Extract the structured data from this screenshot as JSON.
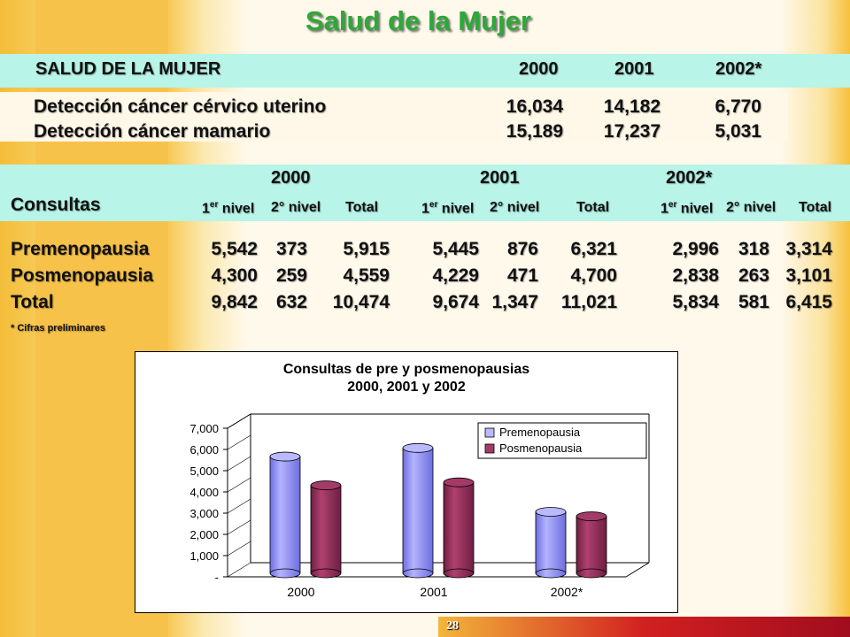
{
  "title": "Salud de la Mujer",
  "top_table": {
    "header": "SALUD DE LA MUJER",
    "years": [
      "2000",
      "2001",
      "2002*"
    ],
    "rows": [
      {
        "label": "Detección cáncer cérvico uterino",
        "values": [
          "16,034",
          "14,182",
          "6,770"
        ]
      },
      {
        "label": "Detección cáncer mamario",
        "values": [
          "15,189",
          "17,237",
          "5,031"
        ]
      }
    ]
  },
  "consult_table": {
    "label": "Consultas",
    "years": [
      "2000",
      "2001",
      "2002*"
    ],
    "sub_first_base": "1",
    "sub_first_sup": "er",
    "sub_first_tail": " nivel",
    "sub_second": "2° nivel",
    "sub_total": "Total",
    "rows": [
      {
        "label": "Premenopausia",
        "values": [
          "5,542",
          "373",
          "5,915",
          "5,445",
          "876",
          "6,321",
          "2,996",
          "318",
          "3,314"
        ]
      },
      {
        "label": "Posmenopausia",
        "values": [
          "4,300",
          "259",
          "4,559",
          "4,229",
          "471",
          "4,700",
          "2,838",
          "263",
          "3,101"
        ]
      },
      {
        "label": "Total",
        "values": [
          "9,842",
          "632",
          "10,474",
          "9,674",
          "1,347",
          "11,021",
          "5,834",
          "581",
          "6,415"
        ]
      }
    ],
    "note": "* Cifras preliminares"
  },
  "page_number": "28",
  "colors": {
    "title": "#2ea838",
    "band": "#b8f4e8",
    "premenopausia": "#9999ff",
    "posmenopausia": "#993366"
  },
  "chart_data": {
    "type": "bar",
    "title_lines": [
      "Consultas de pre y posmenopausias",
      "2000, 2001 y 2002"
    ],
    "categories": [
      "2000",
      "2001",
      "2002*"
    ],
    "series": [
      {
        "name": "Premenopausia",
        "values": [
          5915,
          6321,
          3314
        ]
      },
      {
        "name": "Posmenopausia",
        "values": [
          4559,
          4700,
          3101
        ]
      }
    ],
    "y_ticks": [
      "-",
      "1,000",
      "2,000",
      "3,000",
      "4,000",
      "5,000",
      "6,000",
      "7,000"
    ],
    "ylim": [
      0,
      7000
    ],
    "legend_position": "top-right",
    "style": "3d-cylinder"
  }
}
